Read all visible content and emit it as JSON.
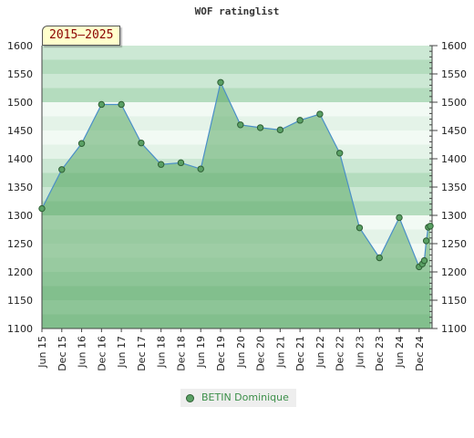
{
  "chart_data": {
    "type": "line",
    "title": "WOF ratinglist",
    "period": "2015–2025",
    "ylim": [
      1100,
      1600
    ],
    "yticks": [
      1100,
      1150,
      1200,
      1250,
      1300,
      1350,
      1400,
      1450,
      1500,
      1550,
      1600
    ],
    "xlim": [
      2015.42,
      2025.2
    ],
    "xticks": [
      {
        "label": "Jun 15",
        "x": 2015.42
      },
      {
        "label": "Dec 15",
        "x": 2015.92
      },
      {
        "label": "Jun 16",
        "x": 2016.42
      },
      {
        "label": "Dec 16",
        "x": 2016.92
      },
      {
        "label": "Jun 17",
        "x": 2017.42
      },
      {
        "label": "Dec 17",
        "x": 2017.92
      },
      {
        "label": "Jun 18",
        "x": 2018.42
      },
      {
        "label": "Dec 18",
        "x": 2018.92
      },
      {
        "label": "Jun 19",
        "x": 2019.42
      },
      {
        "label": "Dec 19",
        "x": 2019.92
      },
      {
        "label": "Jun 20",
        "x": 2020.42
      },
      {
        "label": "Dec 20",
        "x": 2020.92
      },
      {
        "label": "Jun 21",
        "x": 2021.42
      },
      {
        "label": "Dec 21",
        "x": 2021.92
      },
      {
        "label": "Jun 22",
        "x": 2022.42
      },
      {
        "label": "Dec 22",
        "x": 2022.92
      },
      {
        "label": "Jun 23",
        "x": 2023.42
      },
      {
        "label": "Dec 23",
        "x": 2023.92
      },
      {
        "label": "Jun 24",
        "x": 2024.42
      },
      {
        "label": "Dec 24",
        "x": 2024.92
      }
    ],
    "legend_position": "bottom",
    "series": [
      {
        "name": "BETIN Dominique",
        "points": [
          {
            "x": 2015.42,
            "y": 1312
          },
          {
            "x": 2015.92,
            "y": 1381
          },
          {
            "x": 2016.42,
            "y": 1427
          },
          {
            "x": 2016.92,
            "y": 1496
          },
          {
            "x": 2017.42,
            "y": 1496
          },
          {
            "x": 2017.92,
            "y": 1428
          },
          {
            "x": 2018.42,
            "y": 1390
          },
          {
            "x": 2018.92,
            "y": 1393
          },
          {
            "x": 2019.42,
            "y": 1382
          },
          {
            "x": 2019.92,
            "y": 1535
          },
          {
            "x": 2020.42,
            "y": 1460
          },
          {
            "x": 2020.92,
            "y": 1455
          },
          {
            "x": 2021.42,
            "y": 1451
          },
          {
            "x": 2021.92,
            "y": 1468
          },
          {
            "x": 2022.42,
            "y": 1479
          },
          {
            "x": 2022.92,
            "y": 1410
          },
          {
            "x": 2023.42,
            "y": 1278
          },
          {
            "x": 2023.92,
            "y": 1225
          },
          {
            "x": 2024.42,
            "y": 1296
          },
          {
            "x": 2024.92,
            "y": 1209
          },
          {
            "x": 2025.0,
            "y": 1214
          },
          {
            "x": 2025.05,
            "y": 1220
          },
          {
            "x": 2025.1,
            "y": 1255
          },
          {
            "x": 2025.15,
            "y": 1279
          },
          {
            "x": 2025.2,
            "y": 1281
          }
        ]
      }
    ]
  },
  "colors": {
    "band_dark": "#b4dcbe",
    "band_mid": "#cce8d4",
    "band_light": "#e4f3e8",
    "band_white": "#f2faf4",
    "area_fill": "#5aa864",
    "line": "#4a8fc8",
    "marker": "#5aa064",
    "marker_stroke": "#2e5f34",
    "series_label": "#3c8f49"
  },
  "icons": {
    "legend": "circle-marker-icon"
  }
}
